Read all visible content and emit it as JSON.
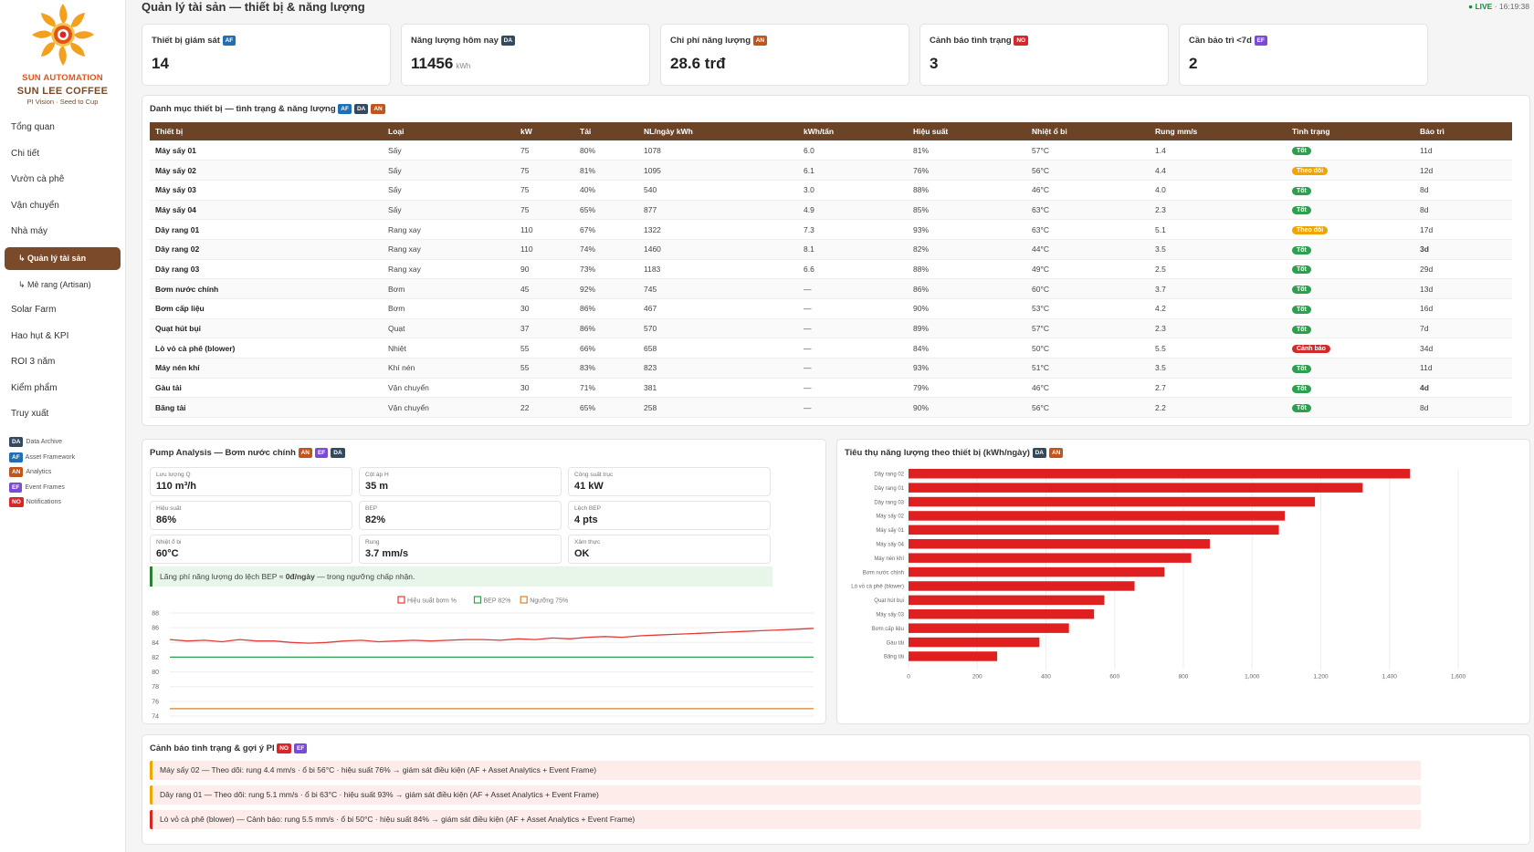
{
  "sidebar": {
    "brand_line1": "SUN AUTOMATION",
    "brand_line2": "SUN LEE COFFEE",
    "brand_line3": "PI Vision · Seed to Cup",
    "nav": [
      {
        "label": "Tổng quan"
      },
      {
        "label": "Chi tiết"
      },
      {
        "label": "Vườn cà phê"
      },
      {
        "label": "Vận chuyển"
      },
      {
        "label": "Nhà máy"
      },
      {
        "label": "↳ Quản lý tài sản",
        "active": true
      },
      {
        "label": "↳ Mẻ rang (Artisan)"
      },
      {
        "label": "Solar Farm"
      },
      {
        "label": "Hao hụt & KPI"
      },
      {
        "label": "ROI 3 năm"
      },
      {
        "label": "Kiểm phẩm"
      },
      {
        "label": "Truy xuất"
      }
    ],
    "legend": [
      {
        "code": "DA",
        "label": "Data Archive"
      },
      {
        "code": "AF",
        "label": "Asset Framework"
      },
      {
        "code": "AN",
        "label": "Analytics"
      },
      {
        "code": "EF",
        "label": "Event Frames"
      },
      {
        "code": "NO",
        "label": "Notifications"
      }
    ]
  },
  "header": {
    "title": "Quản lý tài sản — thiết bị & năng lượng",
    "live_label": "● LIVE",
    "time": "16:19:38"
  },
  "kpis": [
    {
      "label": "Thiết bị giám sát",
      "badge": "AF",
      "value": "14",
      "unit": ""
    },
    {
      "label": "Năng lượng hôm nay",
      "badge": "DA",
      "value": "11456",
      "unit": "kWh"
    },
    {
      "label": "Chi phí năng lượng",
      "badge": "AN",
      "value": "28.6 trđ",
      "unit": ""
    },
    {
      "label": "Cảnh báo tình trạng",
      "badge": "NO",
      "value": "3",
      "unit": ""
    },
    {
      "label": "Cần bảo trì <7d",
      "badge": "EF",
      "value": "2",
      "unit": ""
    }
  ],
  "devices": {
    "title": "Danh mục thiết bị — tình trạng & năng lượng",
    "badges": [
      "AF",
      "DA",
      "AN"
    ],
    "columns": [
      "Thiết bị",
      "Loại",
      "kW",
      "Tải",
      "NL/ngày kWh",
      "kWh/tấn",
      "Hiệu suất",
      "Nhiệt ổ bi",
      "Rung mm/s",
      "Tình trạng",
      "Bảo trì"
    ],
    "rows": [
      [
        "Máy sấy 01",
        "Sấy",
        "75",
        "80%",
        "1078",
        "6.0",
        "81%",
        "57°C",
        "1.4",
        "Tốt",
        "11d"
      ],
      [
        "Máy sấy 02",
        "Sấy",
        "75",
        "81%",
        "1095",
        "6.1",
        "76%",
        "56°C",
        "4.4",
        "Theo dõi",
        "12d"
      ],
      [
        "Máy sấy 03",
        "Sấy",
        "75",
        "40%",
        "540",
        "3.0",
        "88%",
        "46°C",
        "4.0",
        "Tốt",
        "8d"
      ],
      [
        "Máy sấy 04",
        "Sấy",
        "75",
        "65%",
        "877",
        "4.9",
        "85%",
        "63°C",
        "2.3",
        "Tốt",
        "8d"
      ],
      [
        "Dây rang 01",
        "Rang xay",
        "110",
        "67%",
        "1322",
        "7.3",
        "93%",
        "63°C",
        "5.1",
        "Theo dõi",
        "17d"
      ],
      [
        "Dây rang 02",
        "Rang xay",
        "110",
        "74%",
        "1460",
        "8.1",
        "82%",
        "44°C",
        "3.5",
        "Tốt",
        "3d"
      ],
      [
        "Dây rang 03",
        "Rang xay",
        "90",
        "73%",
        "1183",
        "6.6",
        "88%",
        "49°C",
        "2.5",
        "Tốt",
        "29d"
      ],
      [
        "Bơm nước chính",
        "Bơm",
        "45",
        "92%",
        "745",
        "—",
        "86%",
        "60°C",
        "3.7",
        "Tốt",
        "13d"
      ],
      [
        "Bơm cấp liệu",
        "Bơm",
        "30",
        "86%",
        "467",
        "—",
        "90%",
        "53°C",
        "4.2",
        "Tốt",
        "16d"
      ],
      [
        "Quạt hút bụi",
        "Quạt",
        "37",
        "86%",
        "570",
        "—",
        "89%",
        "57°C",
        "2.3",
        "Tốt",
        "7d"
      ],
      [
        "Lò vỏ cà phê (blower)",
        "Nhiệt",
        "55",
        "66%",
        "658",
        "—",
        "84%",
        "50°C",
        "5.5",
        "Cảnh báo",
        "34d"
      ],
      [
        "Máy nén khí",
        "Khí nén",
        "55",
        "83%",
        "823",
        "—",
        "93%",
        "51°C",
        "3.5",
        "Tốt",
        "11d"
      ],
      [
        "Gàu tải",
        "Vận chuyển",
        "30",
        "71%",
        "381",
        "—",
        "79%",
        "46°C",
        "2.7",
        "Tốt",
        "4d"
      ],
      [
        "Băng tải",
        "Vận chuyển",
        "22",
        "65%",
        "258",
        "—",
        "90%",
        "56°C",
        "2.2",
        "Tốt",
        "8d"
      ]
    ],
    "status_colors": {
      "Tốt": "#2e9e4f",
      "Theo dõi": "#f0a500",
      "Cảnh báo": "#d62828"
    },
    "urgent_maintenance": [
      "3d",
      "4d"
    ]
  },
  "pump": {
    "title": "Pump Analysis — Bơm nước chính",
    "badges": [
      "AN",
      "EF",
      "DA"
    ],
    "metrics": [
      {
        "label": "Lưu lượng Q",
        "value": "110 m³/h"
      },
      {
        "label": "Cột áp H",
        "value": "35 m"
      },
      {
        "label": "Công suất trục",
        "value": "41 kW"
      },
      {
        "label": "Hiệu suất",
        "value": "86%"
      },
      {
        "label": "BEP",
        "value": "82%"
      },
      {
        "label": "Lệch BEP",
        "value": "4 pts"
      },
      {
        "label": "Nhiệt ổ bi",
        "value": "60°C"
      },
      {
        "label": "Rung",
        "value": "3.7 mm/s"
      },
      {
        "label": "Xâm thực",
        "value": "OK"
      }
    ],
    "info_pre": "Lãng phí năng lượng do lệch BEP ≈ ",
    "info_bold": "0đ/ngày",
    "info_post": " — trong ngưỡng chấp nhận."
  },
  "chart_data": [
    {
      "type": "line",
      "title": "",
      "ylim": [
        74,
        88
      ],
      "yticks": [
        74,
        76,
        78,
        80,
        82,
        84,
        86,
        88
      ],
      "grid": true,
      "legend_position": "top-center",
      "series": [
        {
          "name": "Hiệu suất bơm %",
          "color": "#e53935",
          "values": [
            84.4,
            84.2,
            84.3,
            84.1,
            84.4,
            84.2,
            84.2,
            84.0,
            83.9,
            84.0,
            84.2,
            84.3,
            84.1,
            84.2,
            84.3,
            84.2,
            84.3,
            84.4,
            84.4,
            84.3,
            84.5,
            84.4,
            84.6,
            84.5,
            84.7,
            84.8,
            84.7,
            84.9,
            85.0,
            85.1,
            85.2,
            85.3,
            85.4,
            85.5,
            85.6,
            85.7,
            85.8,
            85.9
          ]
        },
        {
          "name": "BEP 82%",
          "color": "#2e9e4f",
          "values": [
            82,
            82,
            82,
            82,
            82,
            82,
            82,
            82,
            82,
            82,
            82,
            82,
            82,
            82,
            82,
            82,
            82,
            82,
            82,
            82,
            82,
            82,
            82,
            82,
            82,
            82,
            82,
            82,
            82,
            82,
            82,
            82,
            82,
            82,
            82,
            82,
            82,
            82
          ]
        },
        {
          "name": "Ngưỡng 75%",
          "color": "#d9822b",
          "values": [
            75,
            75,
            75,
            75,
            75,
            75,
            75,
            75,
            75,
            75,
            75,
            75,
            75,
            75,
            75,
            75,
            75,
            75,
            75,
            75,
            75,
            75,
            75,
            75,
            75,
            75,
            75,
            75,
            75,
            75,
            75,
            75,
            75,
            75,
            75,
            75,
            75,
            75
          ]
        }
      ]
    },
    {
      "type": "bar",
      "orientation": "horizontal",
      "title": "Tiêu thụ năng lượng theo thiết bị (kWh/ngày)",
      "badges": [
        "DA",
        "AN"
      ],
      "color": "#e02020",
      "categories": [
        "Dây rang 02",
        "Dây rang 01",
        "Dây rang 03",
        "Máy sấy 02",
        "Máy sấy 01",
        "Máy sấy 04",
        "Máy nén khí",
        "Bơm nước chính",
        "Lò vỏ cà phê (blower)",
        "Quạt hút bụi",
        "Máy sấy 03",
        "Bơm cấp liệu",
        "Gàu tải",
        "Băng tải"
      ],
      "values": [
        1460,
        1322,
        1183,
        1095,
        1078,
        877,
        823,
        745,
        658,
        570,
        540,
        467,
        381,
        258
      ],
      "xlim": [
        0,
        1600
      ],
      "xticks": [
        "0",
        "200",
        "400",
        "600",
        "800",
        "1,000",
        "1,200",
        "1,400",
        "1,600"
      ],
      "grid": true
    }
  ],
  "alerts": {
    "title": "Cảnh báo tình trạng & gợi ý PI",
    "badges": [
      "NO",
      "EF"
    ],
    "items": [
      {
        "text": "Máy sấy 02 — Theo dõi: rung 4.4 mm/s · ổ bi 56°C · hiệu suất 76% → giám sát điều kiện (AF + Asset Analytics + Event Frame)",
        "color": "#f0a500"
      },
      {
        "text": "Dây rang 01 — Theo dõi: rung 5.1 mm/s · ổ bi 63°C · hiệu suất 93% → giám sát điều kiện (AF + Asset Analytics + Event Frame)",
        "color": "#f0a500"
      },
      {
        "text": "Lò vỏ cà phê (blower) — Cảnh báo: rung 5.5 mm/s · ổ bi 50°C · hiệu suất 84% → giám sát điều kiện (AF + Asset Analytics + Event Frame)",
        "color": "#d62828"
      }
    ]
  }
}
